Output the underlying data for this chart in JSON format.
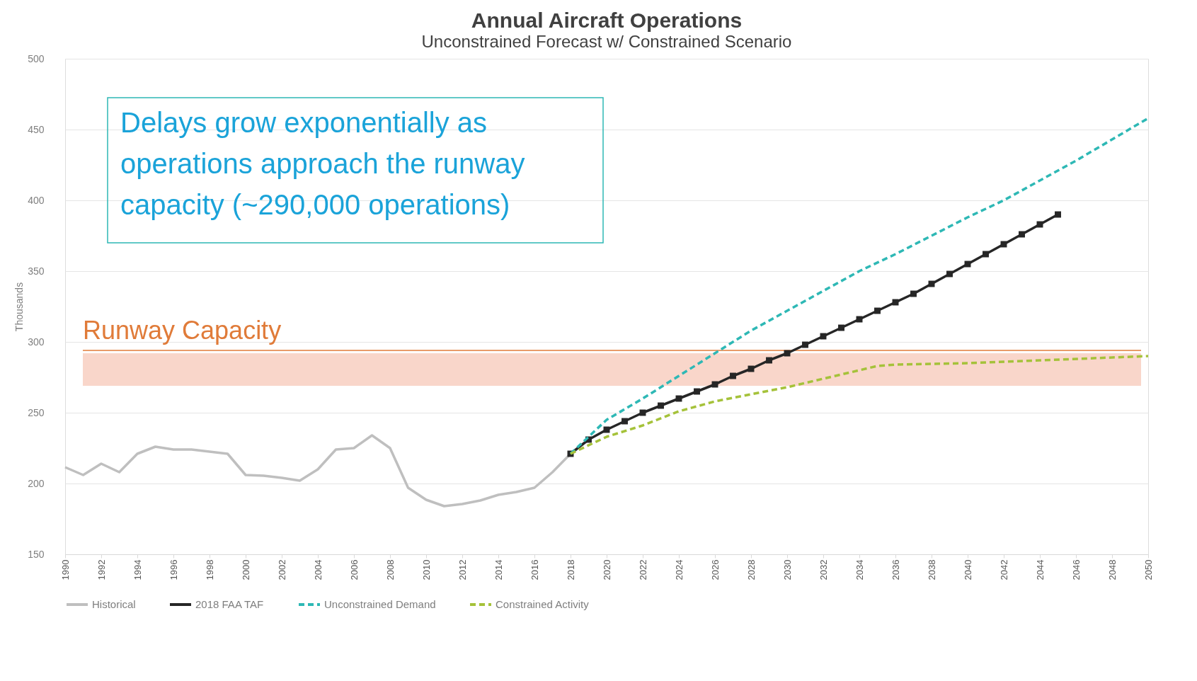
{
  "chart_data": {
    "type": "line",
    "title": "Annual Aircraft Operations",
    "subtitle": "Unconstrained Forecast w/ Constrained Scenario",
    "ylabel": "Thousands",
    "annotations": [
      "Delays grow exponentially as\noperations approach the runway\ncapacity (~290,000 operations)"
    ],
    "xlim": [
      1990,
      2050
    ],
    "xticks": [
      1990,
      1992,
      1994,
      1996,
      1998,
      2000,
      2002,
      2004,
      2006,
      2008,
      2010,
      2012,
      2014,
      2016,
      2018,
      2020,
      2022,
      2024,
      2026,
      2028,
      2030,
      2032,
      2034,
      2036,
      2038,
      2040,
      2042,
      2044,
      2046,
      2048,
      2050
    ],
    "ylim": [
      150,
      500
    ],
    "yticks": [
      150,
      200,
      250,
      300,
      350,
      400,
      450,
      500
    ],
    "grid": "y",
    "legend": "bottom",
    "ref_lines": [
      {
        "axis": "y",
        "value": 294,
        "label": "Runway Capacity",
        "color": "#e07b39"
      }
    ],
    "bands": [
      {
        "axis": "y",
        "from": 269,
        "to": 292,
        "color": "#f9d6ca"
      }
    ],
    "series": [
      {
        "name": "Historical",
        "color": "#bfbfbf",
        "line_style": "solid",
        "marker": "none",
        "x": [
          1990,
          1991,
          1992,
          1993,
          1994,
          1995,
          1996,
          1997,
          1998,
          1999,
          2000,
          2001,
          2002,
          2003,
          2004,
          2005,
          2006,
          2007,
          2008,
          2009,
          2010,
          2011,
          2012,
          2013,
          2014,
          2015,
          2016,
          2017,
          2018
        ],
        "values": [
          211.5,
          206,
          214,
          208,
          221,
          226,
          224,
          224,
          222.5,
          221,
          206,
          205.5,
          204,
          202,
          210,
          224,
          225,
          234,
          225,
          197,
          188.5,
          184,
          185.5,
          188,
          192,
          194,
          197,
          208,
          221
        ]
      },
      {
        "name": "2018 FAA TAF",
        "color": "#262626",
        "line_style": "solid",
        "marker": "square",
        "x": [
          2018,
          2019,
          2020,
          2021,
          2022,
          2023,
          2024,
          2025,
          2026,
          2027,
          2028,
          2029,
          2030,
          2031,
          2032,
          2033,
          2034,
          2035,
          2036,
          2037,
          2038,
          2039,
          2040,
          2041,
          2042,
          2043,
          2044,
          2045
        ],
        "values": [
          221,
          231,
          238,
          244,
          250,
          255,
          260,
          265,
          270,
          276,
          281,
          287,
          292,
          298,
          304,
          310,
          316,
          322,
          328,
          334,
          341,
          348,
          355,
          362,
          369,
          376,
          383,
          390
        ]
      },
      {
        "name": "Unconstrained Demand",
        "color": "#2eb8b5",
        "line_style": "dashed",
        "marker": "none",
        "x": [
          2018,
          2020,
          2022,
          2024,
          2026,
          2028,
          2030,
          2032,
          2034,
          2036,
          2038,
          2040,
          2042,
          2044,
          2046,
          2048,
          2050
        ],
        "values": [
          221,
          245,
          260,
          276,
          292,
          308,
          322,
          336,
          350,
          362,
          375,
          388,
          400,
          414,
          428,
          443,
          458
        ]
      },
      {
        "name": "Constrained Activity",
        "color": "#a5c23a",
        "line_style": "dashed",
        "marker": "none",
        "x": [
          2018,
          2020,
          2022,
          2024,
          2026,
          2028,
          2030,
          2032,
          2034,
          2035,
          2036,
          2040,
          2044,
          2048,
          2050
        ],
        "values": [
          221,
          233,
          241,
          251,
          258,
          263,
          268,
          274,
          280,
          283,
          284,
          285,
          287,
          289,
          290
        ]
      }
    ]
  }
}
